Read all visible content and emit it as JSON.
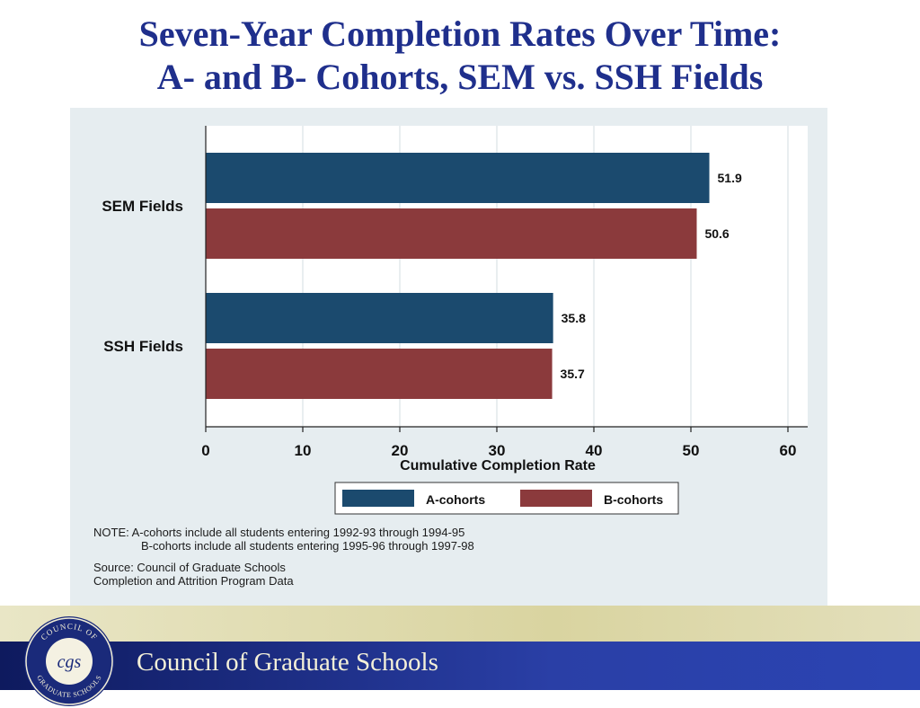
{
  "slide": {
    "title_line1": "Seven-Year Completion Rates Over Time:",
    "title_line2": "A- and B- Cohorts, SEM vs. SSH Fields"
  },
  "chart_data": {
    "type": "bar",
    "orientation": "horizontal",
    "categories": [
      "SEM Fields",
      "SSH Fields"
    ],
    "series": [
      {
        "name": "A-cohorts",
        "values": [
          51.9,
          35.8
        ],
        "color": "#1b4a6e"
      },
      {
        "name": "B-cohorts",
        "values": [
          50.6,
          35.7
        ],
        "color": "#8b3a3c"
      }
    ],
    "xlabel": "Cumulative Completion Rate",
    "xlim": [
      0,
      60
    ],
    "xticks": [
      "0",
      "10",
      "20",
      "30",
      "40",
      "50",
      "60"
    ],
    "data_labels": [
      [
        "51.9",
        "35.8"
      ],
      [
        "50.6",
        "35.7"
      ]
    ],
    "grid": "vertical",
    "legend_position": "bottom"
  },
  "notes": {
    "note_line1": "NOTE: A-cohorts include all students entering 1992-93 through 1994-95",
    "note_line2": "B-cohorts include all students entering 1995-96 through 1997-98",
    "source_line1": "Source: Council of Graduate Schools",
    "source_line2": "Completion and Attrition Program Data"
  },
  "footer": {
    "organization": "Council of Graduate Schools",
    "seal_text_top": "COUNCIL OF",
    "seal_text_bottom": "GRADUATE SCHOOLS",
    "seal_monogram": "cgs",
    "seal_color": "#1a2a7a"
  }
}
